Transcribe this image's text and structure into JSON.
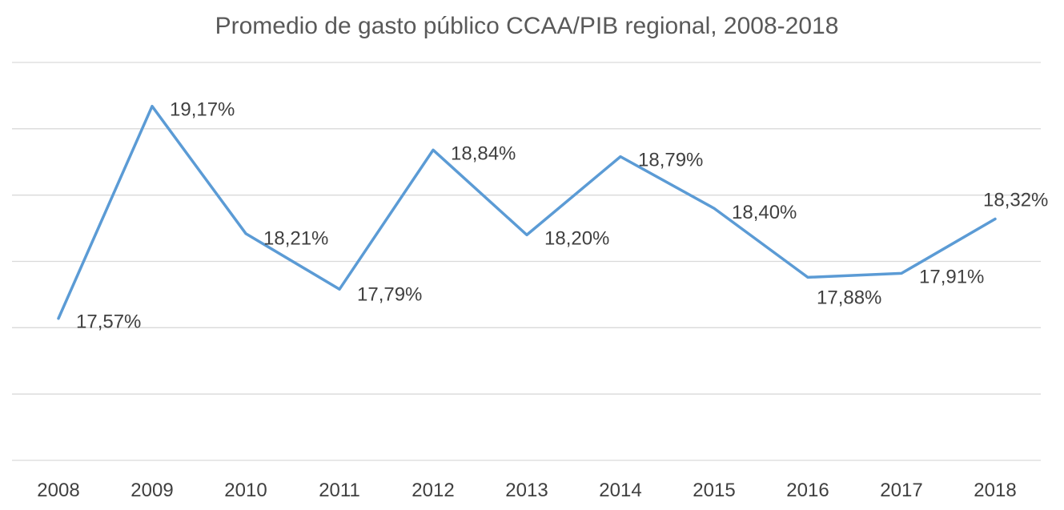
{
  "chart_data": {
    "type": "line",
    "title": "Promedio de gasto público CCAA/PIB regional, 2008-2018",
    "xlabel": "",
    "ylabel": "",
    "categories": [
      "2008",
      "2009",
      "2010",
      "2011",
      "2012",
      "2013",
      "2014",
      "2015",
      "2016",
      "2017",
      "2018"
    ],
    "series": [
      {
        "values": [
          17.57,
          19.17,
          18.21,
          17.79,
          18.84,
          18.2,
          18.79,
          18.4,
          17.88,
          17.91,
          18.32
        ],
        "labels": [
          "17,57%",
          "19,17%",
          "18,21%",
          "17,79%",
          "18,84%",
          "18,20%",
          "18,79%",
          "18,40%",
          "17,88%",
          "17,91%",
          "18,32%"
        ],
        "color": "#5b9bd5"
      }
    ],
    "ylim": [
      16.5,
      19.5
    ],
    "y_grid_step": 0.5,
    "y_tick_labels_visible": false,
    "grid": true,
    "legend": "none"
  }
}
